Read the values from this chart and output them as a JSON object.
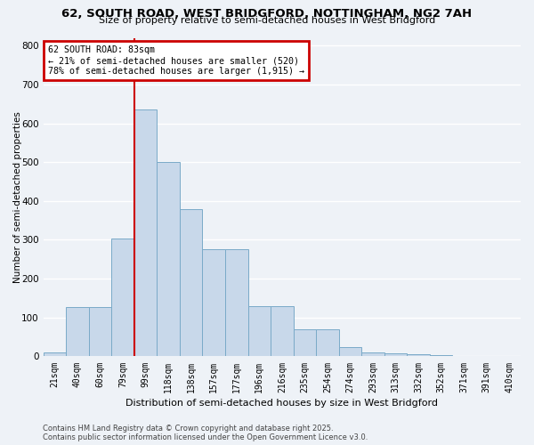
{
  "title_line1": "62, SOUTH ROAD, WEST BRIDGFORD, NOTTINGHAM, NG2 7AH",
  "title_line2": "Size of property relative to semi-detached houses in West Bridgford",
  "xlabel": "Distribution of semi-detached houses by size in West Bridgford",
  "ylabel": "Number of semi-detached properties",
  "categories": [
    "21sqm",
    "40sqm",
    "60sqm",
    "79sqm",
    "99sqm",
    "118sqm",
    "138sqm",
    "157sqm",
    "177sqm",
    "196sqm",
    "216sqm",
    "235sqm",
    "254sqm",
    "274sqm",
    "293sqm",
    "313sqm",
    "332sqm",
    "352sqm",
    "371sqm",
    "391sqm",
    "410sqm"
  ],
  "values": [
    10,
    128,
    128,
    303,
    635,
    500,
    380,
    275,
    275,
    130,
    130,
    70,
    70,
    25,
    10,
    8,
    5,
    3,
    2,
    0,
    0
  ],
  "bar_color": "#c8d8ea",
  "bar_edge_color": "#7aaac8",
  "vline_x_index": 3,
  "vline_color": "#cc0000",
  "annotation_title": "62 SOUTH ROAD: 83sqm",
  "annotation_line1": "← 21% of semi-detached houses are smaller (520)",
  "annotation_line2": "78% of semi-detached houses are larger (1,915) →",
  "annotation_box_edge_color": "#cc0000",
  "annotation_box_face_color": "#ffffff",
  "ylim": [
    0,
    820
  ],
  "yticks": [
    0,
    100,
    200,
    300,
    400,
    500,
    600,
    700,
    800
  ],
  "footer_line1": "Contains HM Land Registry data © Crown copyright and database right 2025.",
  "footer_line2": "Contains public sector information licensed under the Open Government Licence v3.0.",
  "background_color": "#eef2f7",
  "grid_color": "#ffffff",
  "title1_fontsize": 9.5,
  "title2_fontsize": 8.0,
  "ylabel_fontsize": 7.5,
  "xlabel_fontsize": 8.0,
  "tick_fontsize": 7.0,
  "ytick_fontsize": 7.5,
  "footer_fontsize": 6.0,
  "annot_fontsize": 7.2
}
